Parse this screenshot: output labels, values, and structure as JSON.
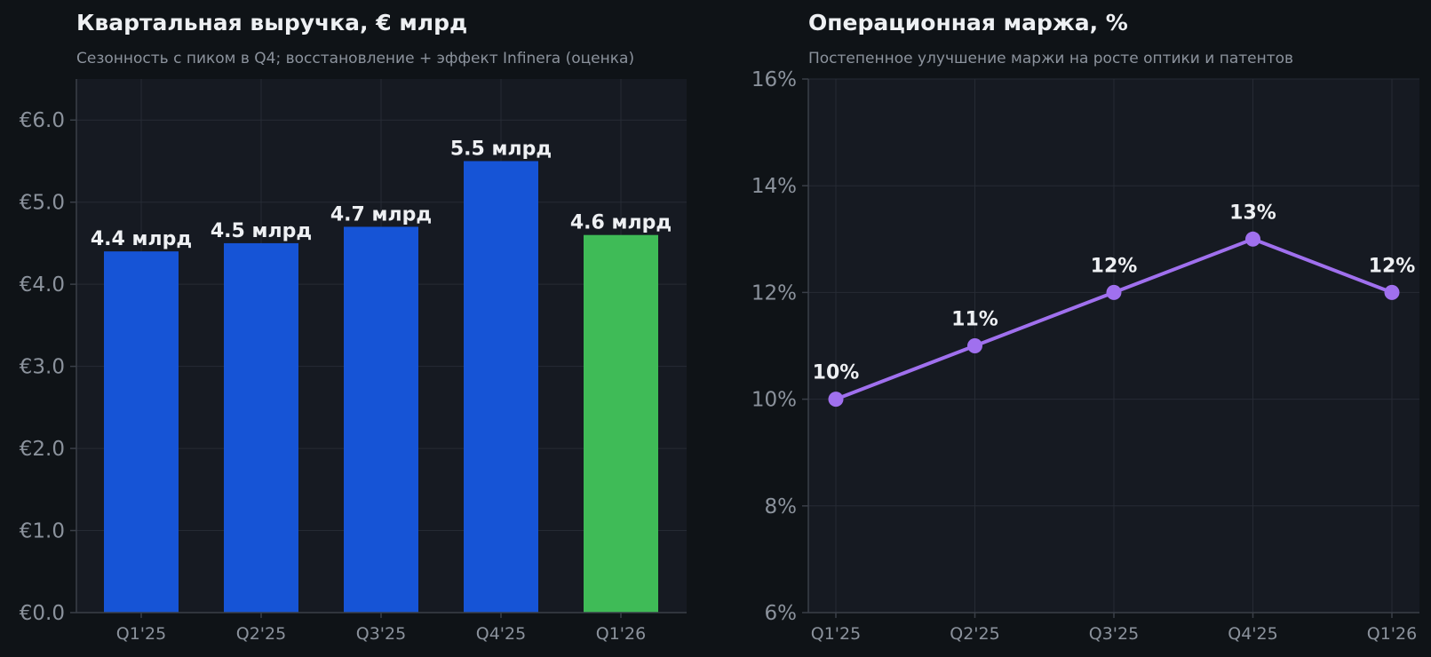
{
  "colors": {
    "page_bg": "#0f1317",
    "plot_bg": "#161a22",
    "grid": "#262b34",
    "axis": "#3a3f48",
    "tick_text": "#8b929c",
    "title_text": "#eef0f3",
    "subtitle_text": "#8b929c",
    "label_text": "#eef0f3",
    "bar_blue": "#1654d6",
    "bar_green": "#3fbb57",
    "line_purple": "#a070ee"
  },
  "chart_data": [
    {
      "type": "bar",
      "title": "Квартальная выручка, € млрд",
      "subtitle": "Сезонность с пиком в Q4; восстановление + эффект Infinera (оценка)",
      "categories": [
        "Q1'25",
        "Q2'25",
        "Q3'25",
        "Q4'25",
        "Q1'26"
      ],
      "values": [
        4.4,
        4.5,
        4.7,
        5.5,
        4.6
      ],
      "data_labels": [
        "4.4 млрд",
        "4.5 млрд",
        "4.7 млрд",
        "5.5 млрд",
        "4.6 млрд"
      ],
      "bar_colors": [
        "#1654d6",
        "#1654d6",
        "#1654d6",
        "#1654d6",
        "#3fbb57"
      ],
      "ylim": [
        0,
        6.5
      ],
      "yticks": [
        0,
        1,
        2,
        3,
        4,
        5,
        6
      ],
      "ytick_labels": [
        "€0.0",
        "€1.0",
        "€2.0",
        "€3.0",
        "€4.0",
        "€5.0",
        "€6.0"
      ],
      "grid": true,
      "xlabel": "",
      "ylabel": ""
    },
    {
      "type": "line",
      "title": "Операционная маржа, %",
      "subtitle": "Постепенное улучшение маржи на росте оптики и патентов",
      "categories": [
        "Q1'25",
        "Q2'25",
        "Q3'25",
        "Q4'25",
        "Q1'26"
      ],
      "values": [
        10,
        11,
        12,
        13,
        12
      ],
      "data_labels": [
        "10%",
        "11%",
        "12%",
        "13%",
        "12%"
      ],
      "line_color": "#a070ee",
      "ylim": [
        6,
        16
      ],
      "yticks": [
        6,
        8,
        10,
        12,
        14,
        16
      ],
      "ytick_labels": [
        "6%",
        "8%",
        "10%",
        "12%",
        "14%",
        "16%"
      ],
      "grid": true,
      "xlabel": "",
      "ylabel": ""
    }
  ]
}
